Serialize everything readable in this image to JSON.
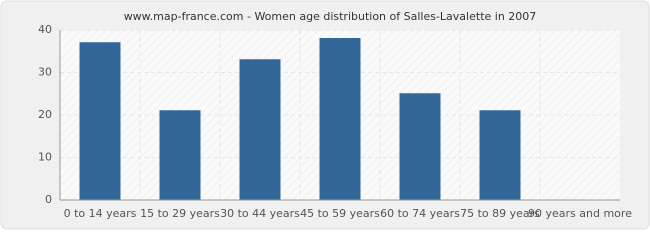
{
  "chart_data": {
    "type": "bar",
    "title": "www.map-france.com - Women age distribution of Salles-Lavalette in 2007",
    "categories": [
      "0 to 14 years",
      "15 to 29 years",
      "30 to 44 years",
      "45 to 59 years",
      "60 to 74 years",
      "75 to 89 years",
      "90 years and more"
    ],
    "values": [
      37,
      21,
      33,
      38,
      25,
      21,
      0
    ],
    "color": "#336699",
    "ylim": [
      0,
      40
    ],
    "yticks": [
      0,
      10,
      20,
      30,
      40
    ],
    "grid": true
  }
}
